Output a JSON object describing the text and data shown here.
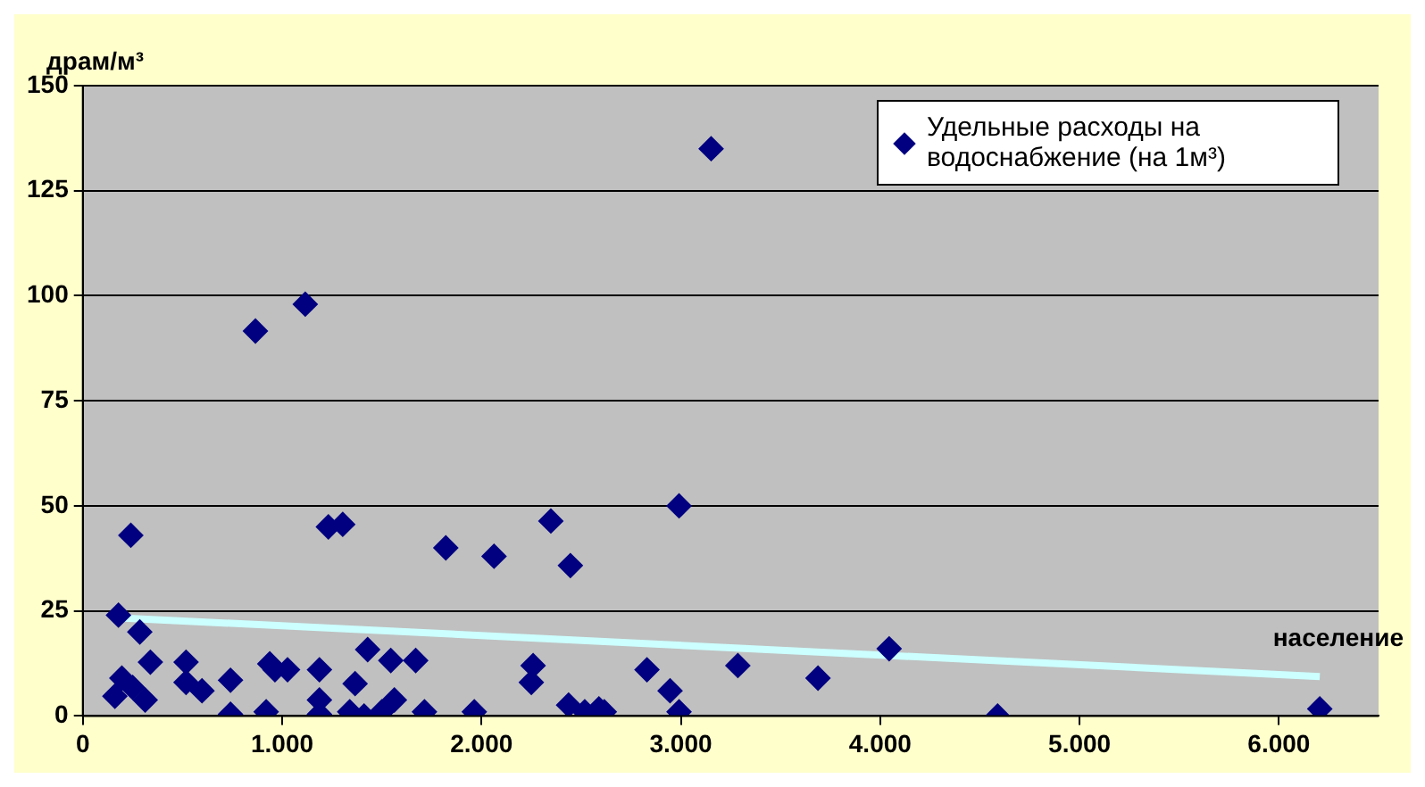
{
  "chart_data": {
    "type": "scatter",
    "ylabel": "драм/м³",
    "xlabel": "население",
    "xlim": [
      0,
      6500
    ],
    "xticks": [
      0,
      {
        "value": 1000,
        "label": "1.000"
      },
      {
        "value": 2000,
        "label": "2.000"
      },
      {
        "value": 3000,
        "label": "3.000"
      },
      {
        "value": 4000,
        "label": "4.000"
      },
      {
        "value": 5000,
        "label": "5.000"
      },
      {
        "value": 6000,
        "label": "6.000"
      }
    ],
    "ylim": [
      0,
      150
    ],
    "yticks": [
      0,
      25,
      50,
      75,
      100,
      125,
      150
    ],
    "grid": "y",
    "legend": "top right",
    "marker": "diamond",
    "series": [
      {
        "name": "Удельные расходы на водоснабжение (на 1м³)",
        "color": "#000080",
        "x": [
          179,
          241,
          286,
          339,
          196,
          161,
          313,
          250,
          518,
          518,
          598,
          741,
          741,
          866,
          920,
          938,
          964,
          1027,
          1116,
          1187,
          1187,
          1187,
          1232,
          1304,
          1339,
          1366,
          1411,
          1429,
          1500,
          1545,
          1563,
          1670,
          1714,
          1821,
          1964,
          2063,
          2250,
          2259,
          2348,
          2437,
          2446,
          2518,
          2589,
          2616,
          2830,
          2946,
          2991,
          2991,
          3152,
          3286,
          3688,
          4045,
          4589,
          6205
        ],
        "values": [
          24,
          43,
          20,
          12.8,
          9,
          4.7,
          3.8,
          6.8,
          12.8,
          8,
          6,
          8.5,
          0.4,
          91.6,
          1,
          12.4,
          11,
          11,
          98,
          11,
          3.8,
          0.4,
          45,
          45.6,
          1,
          7.7,
          0,
          15.8,
          1,
          13.2,
          3.8,
          13.2,
          1,
          40,
          1,
          38,
          8,
          12,
          46.4,
          2.6,
          35.8,
          1,
          1.7,
          1,
          11,
          6,
          1,
          50,
          135,
          12,
          9,
          16,
          0,
          1.7
        ]
      },
      {
        "color": "#ccffff",
        "type": "line",
        "marker": "none",
        "x": [
          161,
          6205
        ],
        "values": [
          23.4,
          9.4
        ]
      }
    ]
  }
}
